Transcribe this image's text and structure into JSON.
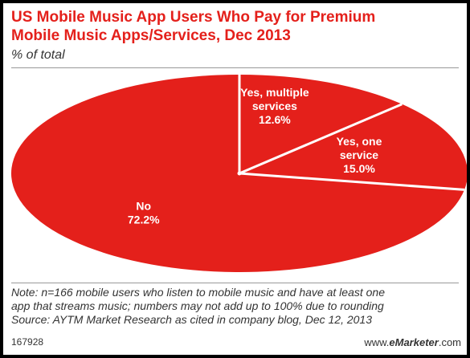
{
  "chart_data": {
    "type": "pie",
    "title_line1": "US Mobile Music App Users Who Pay for Premium",
    "title_line2": "Mobile Music Apps/Services, Dec 2013",
    "subtitle": "% of total",
    "slices": [
      {
        "label_lines": [
          "Yes, multiple",
          "services"
        ],
        "value": 12.6,
        "value_text": "12.6%"
      },
      {
        "label_lines": [
          "Yes, one",
          "service"
        ],
        "value": 15.0,
        "value_text": "15.0%"
      },
      {
        "label_lines": [
          "No"
        ],
        "value": 72.2,
        "value_text": "72.2%"
      }
    ],
    "colors": {
      "fill": "#e4201b",
      "divider": "#ffffff",
      "title": "#e4201b"
    }
  },
  "notes": {
    "line1": "Note: n=166 mobile users who listen to mobile music and have at least one",
    "line2": "app that streams music; numbers may not add up to 100% due to rounding",
    "line3": "Source: AYTM Market Research as cited in company blog, Dec 12, 2013"
  },
  "footer": {
    "chart_id": "167928",
    "brand_prefix": "www.",
    "brand_name": "eMarketer",
    "brand_suffix": ".com"
  }
}
